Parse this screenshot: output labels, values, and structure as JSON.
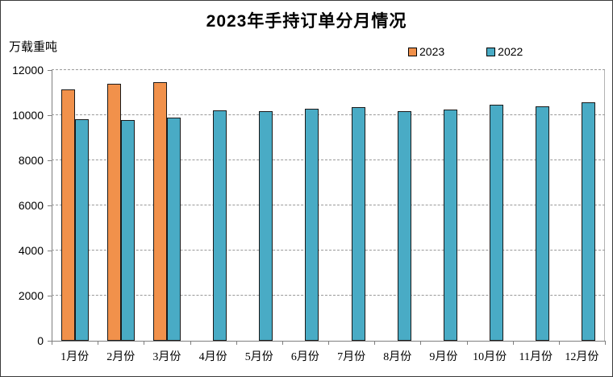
{
  "chart_data": {
    "type": "bar",
    "title": "2023年手持订单分月情况",
    "unit_label": "万载重吨",
    "categories": [
      "1月份",
      "2月份",
      "3月份",
      "4月份",
      "5月份",
      "6月份",
      "7月份",
      "8月份",
      "9月份",
      "10月份",
      "11月份",
      "12月份"
    ],
    "series": [
      {
        "name": "2023",
        "color": "#F1914B",
        "values": [
          11150,
          11400,
          11450,
          null,
          null,
          null,
          null,
          null,
          null,
          null,
          null,
          null
        ]
      },
      {
        "name": "2022",
        "color": "#49ABC5",
        "values": [
          9830,
          9780,
          9910,
          10230,
          10190,
          10280,
          10360,
          10190,
          10250,
          10460,
          10390,
          10560
        ]
      }
    ],
    "ylim": [
      0,
      12000
    ],
    "yticks": [
      0,
      2000,
      4000,
      6000,
      8000,
      10000,
      12000
    ],
    "grid": "horizontal-dashed",
    "legend_position": "top-right",
    "colors": {
      "grid": "#999999",
      "axis": "#7f7f7f",
      "bar_border": "#1a1a1a",
      "text": "#000000"
    }
  }
}
